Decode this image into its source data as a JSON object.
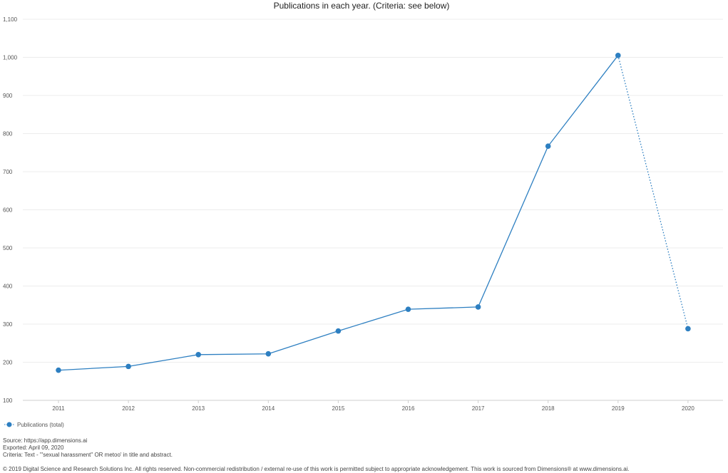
{
  "chart_data": {
    "type": "line",
    "title": "Publications in each year. (Criteria: see below)",
    "xlabel": "",
    "ylabel": "",
    "categories": [
      "2011",
      "2012",
      "2013",
      "2014",
      "2015",
      "2016",
      "2017",
      "2018",
      "2019",
      "2020"
    ],
    "y_ticks": [
      "100",
      "200",
      "300",
      "400",
      "500",
      "600",
      "700",
      "800",
      "900",
      "1,000",
      "1,100"
    ],
    "ylim": [
      100,
      1100
    ],
    "grid": true,
    "legend_placement": "bottom-left",
    "series": [
      {
        "name": "Publications (total)",
        "values": [
          179,
          189,
          220,
          222,
          282,
          339,
          345,
          767,
          1005,
          288
        ],
        "color": "#2d7fc1",
        "dotted_last_segment": true
      }
    ]
  },
  "footer": {
    "source": "Source: https://app.dimensions.ai",
    "exported": "Exported: April 09, 2020",
    "criteria": "Criteria: Text - '\"sexual harassment\" OR metoo' in title and abstract.",
    "copyright": "© 2019 Digital Science and Research Solutions Inc. All rights reserved. Non-commercial redistribution / external re-use of this work is permitted subject to appropriate acknowledgement. This work is sourced from Dimensions® at www.dimensions.ai."
  }
}
